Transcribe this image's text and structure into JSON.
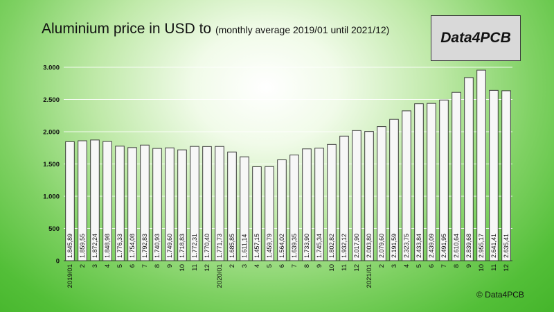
{
  "header": {
    "title": "Aluminium price in USD to",
    "subtitle": "(monthly average 2019/01 until 2021/12)"
  },
  "logo": {
    "text": "Data4PCB"
  },
  "footer": {
    "copyright": "© Data4PCB"
  },
  "chart_data": {
    "type": "bar",
    "title": "Aluminium price in USD to (monthly average 2019/01 until 2021/12)",
    "xlabel": "",
    "ylabel": "",
    "ylim": [
      0,
      3000
    ],
    "yticks": [
      0,
      500,
      1000,
      1500,
      2000,
      2500,
      3000
    ],
    "ytick_labels": [
      "0",
      "500",
      "1.000",
      "1.500",
      "2.000",
      "2.500",
      "3.000"
    ],
    "grid": true,
    "categories": [
      "2019/01",
      "2",
      "3",
      "4",
      "5",
      "6",
      "7",
      "8",
      "9",
      "10",
      "11",
      "12",
      "2020/01",
      "2",
      "3",
      "4",
      "5",
      "6",
      "7",
      "8",
      "9",
      "10",
      "11",
      "12",
      "2021/01",
      "2",
      "3",
      "4",
      "5",
      "6",
      "7",
      "8",
      "9",
      "10",
      "11",
      "12"
    ],
    "values": [
      1845.89,
      1859.55,
      1872.24,
      1848.98,
      1776.33,
      1754.08,
      1792.83,
      1740.93,
      1749.6,
      1718.83,
      1772.31,
      1770.4,
      1771.73,
      1685.85,
      1611.14,
      1457.15,
      1459.79,
      1564.02,
      1639.35,
      1733.9,
      1745.34,
      1802.82,
      1932.12,
      2017.9,
      2003.8,
      2079.6,
      2191.59,
      2323.75,
      2433.84,
      2439.09,
      2491.95,
      2610.64,
      2839.68,
      2955.17,
      2641.41,
      2635.41
    ],
    "value_labels": [
      "1.845,89",
      "1.859,55",
      "1.872,24",
      "1.848,98",
      "1.776,33",
      "1.754,08",
      "1.792,83",
      "1.740,93",
      "1.749,60",
      "1.718,83",
      "1.772,31",
      "1.770,40",
      "1.771,73",
      "1.685,85",
      "1.611,14",
      "1.457,15",
      "1.459,79",
      "1.564,02",
      "1.639,35",
      "1.733,90",
      "1.745,34",
      "1.802,82",
      "1.932,12",
      "2.017,90",
      "2.003,80",
      "2.079,60",
      "2.191,59",
      "2.323,75",
      "2.433,84",
      "2.439,09",
      "2.491,95",
      "2.610,64",
      "2.839,68",
      "2.955,17",
      "2.641,41",
      "2.635,41"
    ],
    "colors": {
      "bar_fill": "#f7f7f7",
      "bar_stroke": "#3c3c3c"
    }
  }
}
